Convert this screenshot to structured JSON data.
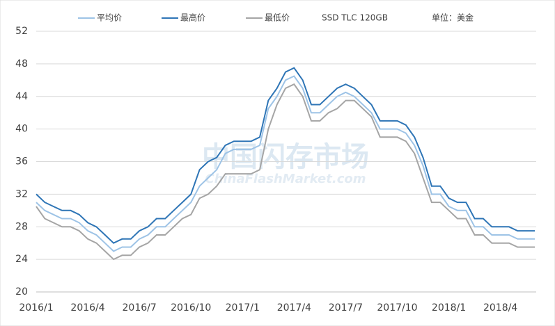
{
  "chart_data": {
    "type": "line",
    "subtitle": "SSD TLC 120GB",
    "unit": "单位：美金",
    "watermark": "中国闪存市场",
    "watermark_url": "ChinaFlashMarket.com",
    "categories": [
      "2016/1",
      null,
      null,
      null,
      null,
      null,
      "2016/4",
      null,
      null,
      null,
      null,
      null,
      "2016/7",
      null,
      null,
      null,
      null,
      null,
      "2016/10",
      null,
      null,
      null,
      null,
      null,
      "2017/1",
      null,
      null,
      null,
      null,
      null,
      "2017/4",
      null,
      null,
      null,
      null,
      null,
      "2017/7",
      null,
      null,
      null,
      null,
      null,
      "2017/10",
      null,
      null,
      null,
      null,
      null,
      "2018/1",
      null,
      null,
      null,
      null,
      null,
      "2018/4",
      null,
      null,
      null,
      null
    ],
    "series": [
      {
        "name": "平均价",
        "color": "#9dc3e6",
        "values": [
          31,
          30,
          29.5,
          29,
          29,
          28.5,
          27.5,
          27,
          26,
          25,
          25.5,
          25.5,
          26.5,
          27,
          28,
          28,
          29,
          30,
          31,
          33,
          34,
          35,
          37,
          37.5,
          37.5,
          37.5,
          38,
          42.5,
          44,
          46,
          46.5,
          45,
          42,
          42,
          43,
          44,
          44.5,
          44,
          43,
          42,
          40,
          40,
          40,
          39.5,
          38,
          35.5,
          32,
          32,
          30.5,
          30,
          30,
          28,
          28,
          27,
          27,
          27,
          26.5,
          26.5,
          26.5
        ]
      },
      {
        "name": "最高价",
        "color": "#2e75b6",
        "values": [
          32,
          31,
          30.5,
          30,
          30,
          29.5,
          28.5,
          28,
          27,
          26,
          26.5,
          26.5,
          27.5,
          28,
          29,
          29,
          30,
          31,
          32,
          35,
          36,
          36.5,
          38,
          38.5,
          38.5,
          38.5,
          39,
          43.5,
          45,
          47,
          47.5,
          46,
          43,
          43,
          44,
          45,
          45.5,
          45,
          44,
          43,
          41,
          41,
          41,
          40.5,
          39,
          36.5,
          33,
          33,
          31.5,
          31,
          31,
          29,
          29,
          28,
          28,
          28,
          27.5,
          27.5,
          27.5
        ]
      },
      {
        "name": "最低价",
        "color": "#a5a5a5",
        "values": [
          30.5,
          29,
          28.5,
          28,
          28,
          27.5,
          26.5,
          26,
          25,
          24,
          24.5,
          24.5,
          25.5,
          26,
          27,
          27,
          28,
          29,
          29.5,
          31.5,
          32,
          33,
          34.5,
          34.5,
          34.5,
          34.5,
          35,
          40,
          43,
          45,
          45.5,
          44,
          41,
          41,
          42,
          42.5,
          43.5,
          43.5,
          42.5,
          41.5,
          39,
          39,
          39,
          38.5,
          37,
          34,
          31,
          31,
          30,
          29,
          29,
          27,
          27,
          26,
          26,
          26,
          25.5,
          25.5,
          25.5
        ]
      }
    ],
    "ylim": [
      20,
      52
    ],
    "yticks": [
      20,
      24,
      28,
      32,
      36,
      40,
      44,
      48,
      52
    ],
    "grid": true
  }
}
